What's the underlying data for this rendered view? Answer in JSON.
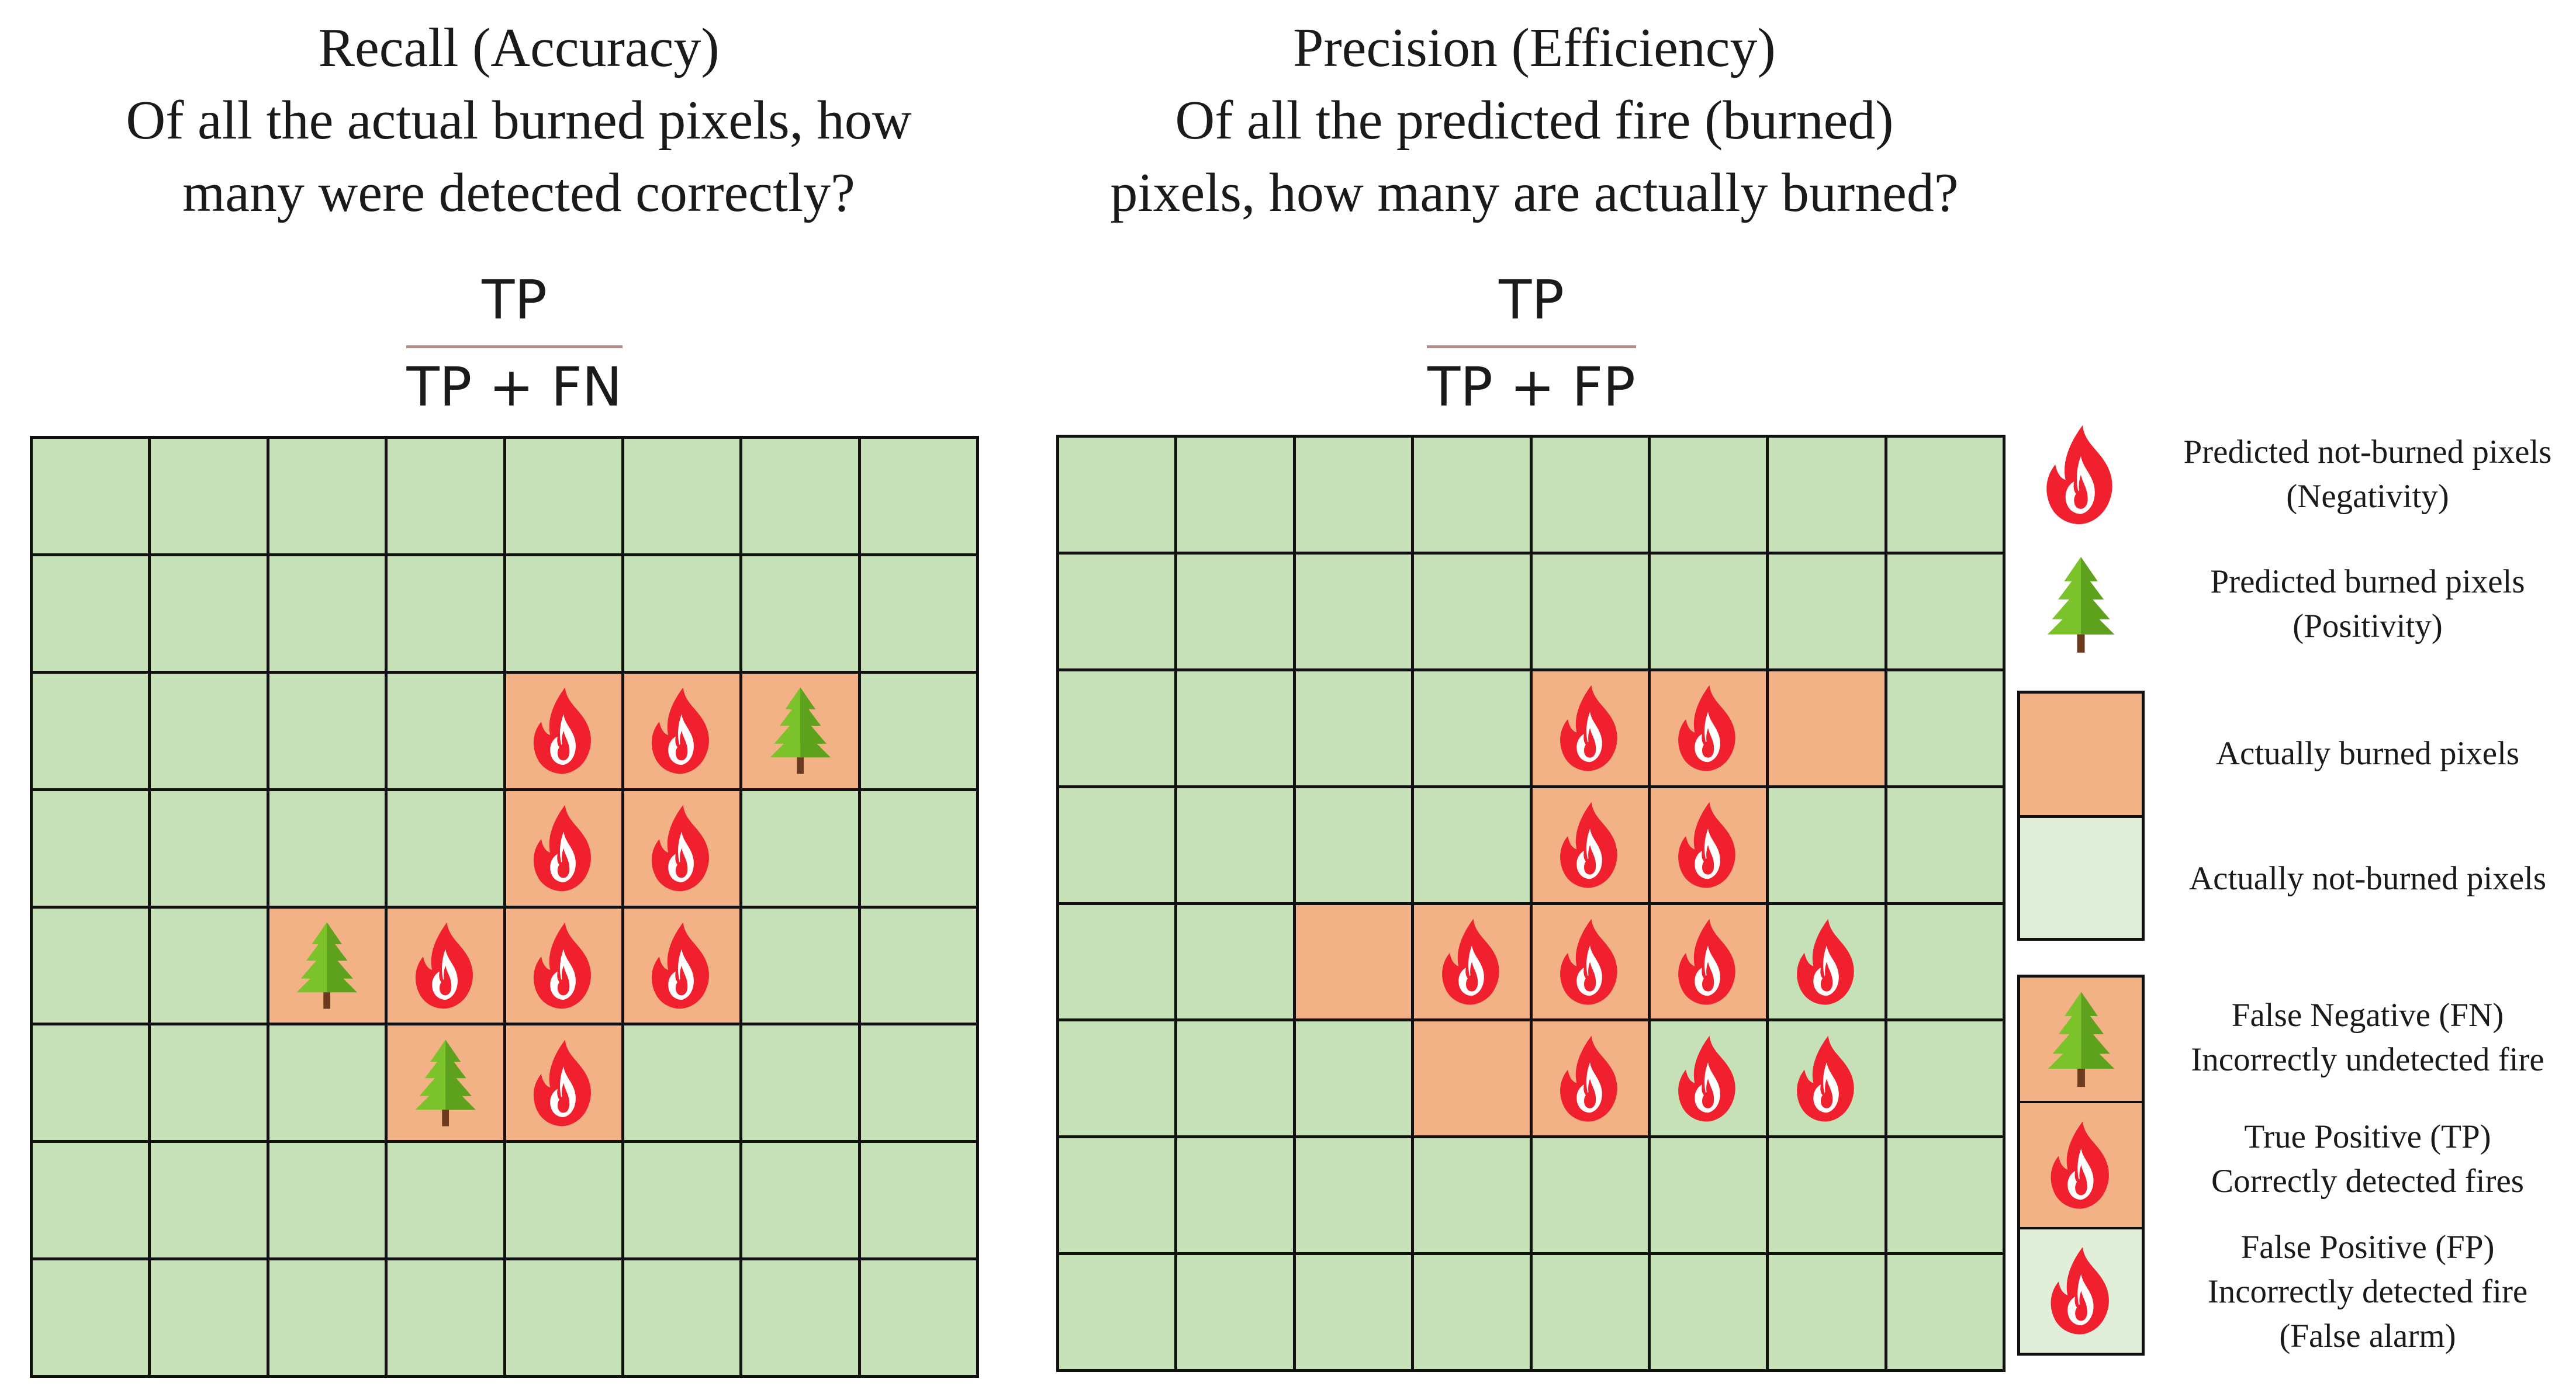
{
  "colors": {
    "burned": "#f2b286",
    "not_burned": "#c6e0b8",
    "legend_not_burned": "#e1efda",
    "fire_red": "#f0202e",
    "fire_inner": "#ffffff",
    "tree_green": "#7cc22a",
    "tree_dark": "#5da11c",
    "trunk": "#6b3a1f",
    "grid_line": "#111111"
  },
  "left_panel": {
    "title_lines": [
      "Recall (Accuracy)",
      "Of all the actual burned pixels, how",
      "many were detected correctly?"
    ],
    "formula": {
      "numerator": "TP",
      "denominator": "TP + FN"
    },
    "grid": [
      "GGGGGGGG",
      "GGGGGGGG",
      "GGGGFFTG",
      "GGGGFFGG",
      "GGTFFFGG",
      "GGGTFGGG",
      "GGGGGGGG",
      "GGGGGGGG"
    ]
  },
  "right_panel": {
    "title_lines": [
      "Precision (Efficiency)",
      "Of all the predicted fire (burned)",
      "pixels, how many are actually burned?"
    ],
    "formula": {
      "numerator": "TP",
      "denominator": "TP + FP"
    },
    "grid": [
      "GGGGGGGG",
      "GGGGGGGG",
      "GGGGFFBG",
      "GGGGFFGG",
      "GGBFFFXG",
      "GGGBFXXG",
      "GGGGGGGG",
      "GGGGGGGG"
    ]
  },
  "grid_legend": {
    "G": "not-burned cell",
    "B": "burned cell",
    "F": "burned cell with fire icon",
    "T": "burned cell with tree icon",
    "X": "not-burned cell with fire icon"
  },
  "legend": {
    "predicted_not_burned": [
      "Predicted not-burned pixels",
      "(Negativity)"
    ],
    "predicted_burned": [
      "Predicted burned pixels",
      "(Positivity)"
    ],
    "actually_burned": "Actually burned pixels",
    "actually_not_burned": "Actually not-burned pixels",
    "false_negative": [
      "False Negative (FN)",
      "Incorrectly undetected fire"
    ],
    "true_positive": [
      "True Positive (TP)",
      "Correctly detected fires"
    ],
    "false_positive": [
      "False Positive (FP)",
      "Incorrectly detected fire",
      "(False alarm)"
    ]
  },
  "icons": {
    "fire": "fire-icon",
    "tree": "tree-icon"
  }
}
